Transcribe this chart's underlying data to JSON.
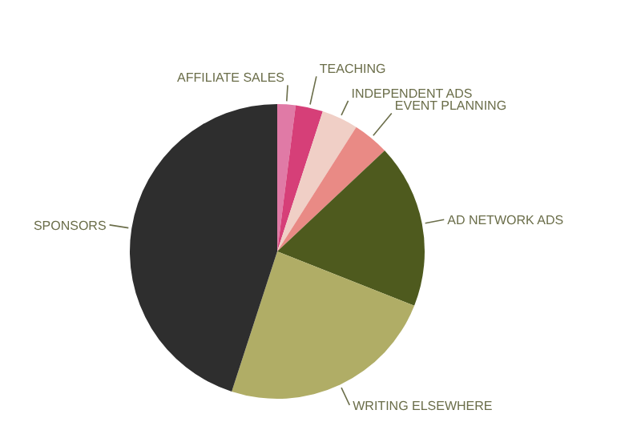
{
  "chart_data": {
    "type": "pie",
    "categories": [
      "AFFILIATE SALES",
      "TEACHING",
      "INDEPENDENT ADS",
      "EVENT PLANNING",
      "AD NETWORK ADS",
      "WRITING ELSEWHERE",
      "SPONSORS"
    ],
    "values": [
      2,
      3,
      4,
      4,
      18,
      24,
      45
    ],
    "colors": [
      "#e07aa6",
      "#d63f78",
      "#f0cfc6",
      "#e98a85",
      "#4e5a1e",
      "#b0ad66",
      "#2e2e2e"
    ],
    "legend": false
  }
}
